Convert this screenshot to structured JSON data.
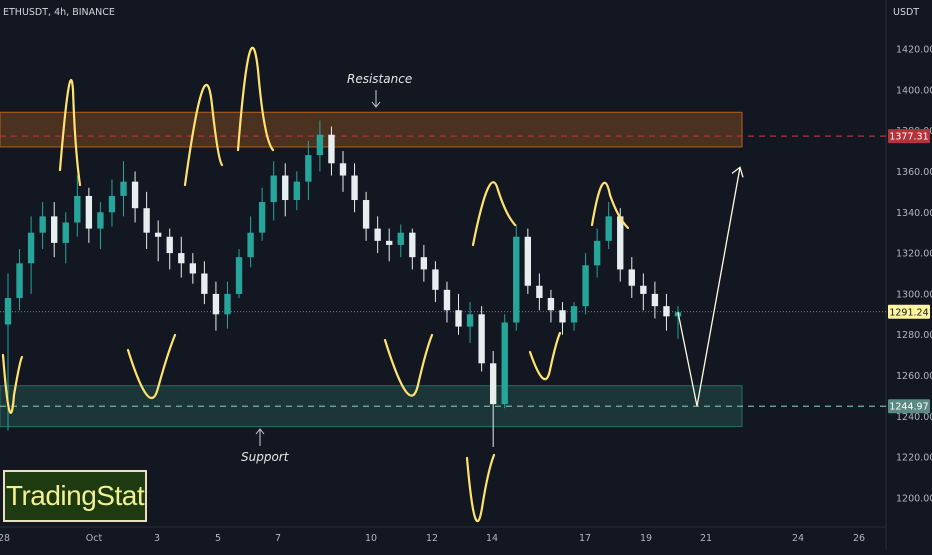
{
  "header": {
    "symbol_label": "ETHUSDT, 4h, BINANCE",
    "price_axis_unit": "USDT"
  },
  "logo": {
    "text": "TradingStat"
  },
  "chart_data": {
    "type": "candlestick",
    "title": "ETHUSDT, 4h, BINANCE",
    "ylabel": "USDT",
    "ylim": [
      1190,
      1440
    ],
    "x_ticks": [
      "28",
      "Oct",
      "3",
      "5",
      "7",
      "10",
      "12",
      "14",
      "17",
      "19",
      "21",
      "24",
      "26"
    ],
    "y_ticks": [
      1200,
      1220,
      1240,
      1260,
      1280,
      1300,
      1320,
      1340,
      1360,
      1380,
      1400,
      1420
    ],
    "price_labels": [
      {
        "value": "1377.31",
        "role": "resistance-level",
        "color": "#b2333a"
      },
      {
        "value": "1291.24",
        "role": "last-price",
        "color": "#fff59d"
      },
      {
        "value": "1244.97",
        "role": "support-level",
        "color": "#5b8a85"
      }
    ],
    "zones": [
      {
        "name": "Resistance",
        "low": 1372,
        "high": 1389,
        "color": "#b5601a"
      },
      {
        "name": "Support",
        "low": 1235,
        "high": 1255,
        "color": "#2a6e64"
      }
    ],
    "annotations": [
      "Resistance",
      "Support"
    ],
    "colors": {
      "up": "#26a69a",
      "down": "#e6eef0",
      "drawing": "#ffe36e",
      "projection": "#fffde0"
    },
    "candles": [
      [
        1285,
        1310,
        1233,
        1298
      ],
      [
        1298,
        1322,
        1292,
        1315
      ],
      [
        1315,
        1338,
        1300,
        1330
      ],
      [
        1330,
        1345,
        1322,
        1338
      ],
      [
        1338,
        1345,
        1318,
        1325
      ],
      [
        1325,
        1340,
        1315,
        1335
      ],
      [
        1335,
        1358,
        1328,
        1348
      ],
      [
        1348,
        1352,
        1325,
        1332
      ],
      [
        1332,
        1345,
        1322,
        1340
      ],
      [
        1340,
        1356,
        1333,
        1348
      ],
      [
        1348,
        1365,
        1338,
        1355
      ],
      [
        1355,
        1360,
        1335,
        1342
      ],
      [
        1342,
        1350,
        1322,
        1330
      ],
      [
        1330,
        1336,
        1316,
        1328
      ],
      [
        1328,
        1332,
        1312,
        1320
      ],
      [
        1320,
        1328,
        1308,
        1315
      ],
      [
        1315,
        1320,
        1305,
        1310
      ],
      [
        1310,
        1316,
        1295,
        1300
      ],
      [
        1300,
        1306,
        1282,
        1290
      ],
      [
        1290,
        1306,
        1283,
        1300
      ],
      [
        1300,
        1322,
        1298,
        1318
      ],
      [
        1318,
        1338,
        1313,
        1330
      ],
      [
        1330,
        1352,
        1326,
        1345
      ],
      [
        1345,
        1365,
        1336,
        1358
      ],
      [
        1358,
        1364,
        1338,
        1346
      ],
      [
        1346,
        1360,
        1341,
        1355
      ],
      [
        1355,
        1375,
        1346,
        1368
      ],
      [
        1368,
        1385,
        1360,
        1378
      ],
      [
        1378,
        1382,
        1358,
        1364
      ],
      [
        1364,
        1370,
        1350,
        1358
      ],
      [
        1358,
        1364,
        1340,
        1346
      ],
      [
        1346,
        1350,
        1326,
        1332
      ],
      [
        1332,
        1338,
        1320,
        1326
      ],
      [
        1326,
        1332,
        1316,
        1324
      ],
      [
        1324,
        1334,
        1318,
        1330
      ],
      [
        1330,
        1332,
        1312,
        1318
      ],
      [
        1318,
        1324,
        1306,
        1312
      ],
      [
        1312,
        1316,
        1296,
        1302
      ],
      [
        1302,
        1306,
        1286,
        1292
      ],
      [
        1292,
        1300,
        1280,
        1284
      ],
      [
        1284,
        1296,
        1276,
        1290
      ],
      [
        1290,
        1294,
        1262,
        1266
      ],
      [
        1266,
        1272,
        1225,
        1246
      ],
      [
        1246,
        1290,
        1244,
        1286
      ],
      [
        1286,
        1334,
        1282,
        1328
      ],
      [
        1328,
        1332,
        1300,
        1304
      ],
      [
        1304,
        1310,
        1292,
        1298
      ],
      [
        1298,
        1302,
        1286,
        1292
      ],
      [
        1292,
        1296,
        1280,
        1286
      ],
      [
        1286,
        1296,
        1282,
        1294
      ],
      [
        1294,
        1320,
        1290,
        1314
      ],
      [
        1314,
        1332,
        1308,
        1326
      ],
      [
        1326,
        1345,
        1322,
        1338
      ],
      [
        1338,
        1342,
        1306,
        1312
      ],
      [
        1312,
        1318,
        1298,
        1304
      ],
      [
        1304,
        1310,
        1292,
        1300
      ],
      [
        1300,
        1306,
        1288,
        1294
      ],
      [
        1294,
        1300,
        1282,
        1289
      ],
      [
        1289,
        1294,
        1278,
        1291
      ]
    ],
    "projection": {
      "from": 1291,
      "via": 1245,
      "to": 1362
    }
  }
}
